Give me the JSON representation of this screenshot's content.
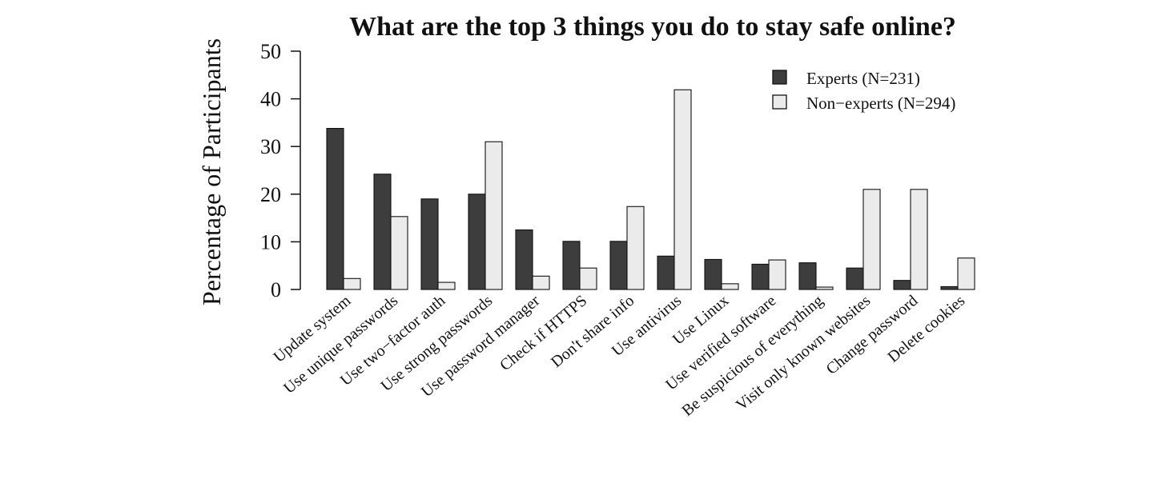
{
  "chart_data": {
    "type": "bar",
    "title": "What are the top 3 things you do to stay safe online?",
    "xlabel": "",
    "ylabel": "Percentage of Participants",
    "ylim": [
      0,
      50
    ],
    "yticks": [
      0,
      10,
      20,
      30,
      40,
      50
    ],
    "grid": false,
    "legend_position": "top-right",
    "categories": [
      "Update system",
      "Use unique passwords",
      "Use two−factor auth",
      "Use strong passwords",
      "Use password manager",
      "Check if HTTPS",
      "Don't share info",
      "Use antivirus",
      "Use Linux",
      "Use verified software",
      "Be suspicious of everything",
      "Visit only known websites",
      "Change password",
      "Delete cookies"
    ],
    "series": [
      {
        "name": "Experts (N=231)",
        "color": "#3d3d3d",
        "values": [
          33.8,
          24.2,
          19.0,
          20.0,
          12.5,
          10.1,
          10.1,
          7.0,
          6.3,
          5.3,
          5.6,
          4.5,
          1.9,
          0.6
        ]
      },
      {
        "name": "Non−experts (N=294)",
        "color": "#ebebeb",
        "values": [
          2.3,
          15.3,
          1.5,
          31.0,
          2.8,
          4.5,
          17.4,
          41.9,
          1.2,
          6.2,
          0.5,
          21.0,
          21.0,
          6.6
        ]
      }
    ]
  }
}
